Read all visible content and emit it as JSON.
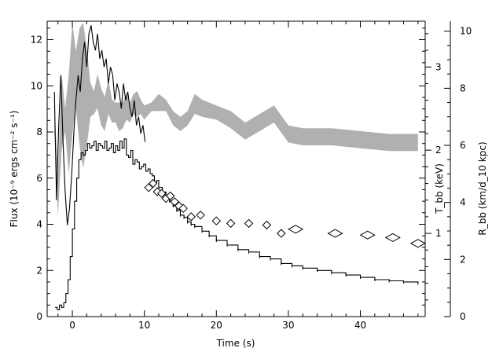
{
  "chart_data": {
    "type": "line",
    "title": "",
    "xlabel": "Time (s)",
    "xlim": [
      -3.5,
      49
    ],
    "x_ticks": [
      0,
      10,
      20,
      30,
      40
    ],
    "y_left": {
      "label": "Flux (10⁻⁹ ergs cm⁻² s⁻¹)",
      "lim": [
        0,
        12.8
      ],
      "ticks": [
        0,
        2,
        4,
        6,
        8,
        10,
        12
      ]
    },
    "y_right_T": {
      "label": "T_bb (keV)",
      "lim": [
        0,
        3.55
      ],
      "ticks": [
        1,
        2,
        3
      ],
      "minor_step": 0.2
    },
    "y_right_R": {
      "label": "R_bb (km/d_10 kpc)",
      "lim": [
        0,
        10.35
      ],
      "ticks": [
        0,
        2,
        4,
        6,
        8,
        10
      ],
      "minor_step": 0.5
    },
    "series": [
      {
        "role": "flux",
        "style": "step-line",
        "x": [
          -2.4,
          -2.1,
          -1.8,
          -1.5,
          -1.2,
          -0.9,
          -0.6,
          -0.3,
          0,
          0.3,
          0.6,
          0.9,
          1.2,
          1.5,
          1.8,
          2.1,
          2.4,
          2.7,
          3,
          3.3,
          3.6,
          3.9,
          4.2,
          4.5,
          4.8,
          5.1,
          5.4,
          5.7,
          6,
          6.3,
          6.6,
          6.9,
          7.2,
          7.5,
          7.8,
          8.1,
          8.4,
          8.7,
          9,
          9.3,
          9.6,
          9.9,
          10.2,
          10.5,
          10.8,
          11.1,
          11.4,
          11.7,
          12,
          12.5,
          13,
          13.5,
          14,
          14.5,
          15,
          15.5,
          16,
          16.5,
          17,
          18,
          19,
          20,
          21.5,
          23,
          24.5,
          26,
          27.5,
          29,
          30.5,
          32,
          34,
          36,
          38,
          40,
          42,
          44,
          46,
          48
        ],
        "values": [
          0.4,
          0.3,
          0.5,
          0.4,
          0.6,
          1.0,
          1.6,
          2.6,
          3.8,
          5.0,
          6.0,
          6.8,
          7.1,
          7.0,
          7.2,
          7.5,
          7.3,
          7.4,
          7.6,
          7.2,
          7.5,
          7.4,
          7.3,
          7.6,
          7.2,
          7.3,
          7.5,
          7.1,
          7.4,
          7.2,
          7.6,
          7.3,
          7.7,
          7.0,
          6.9,
          7.2,
          6.6,
          6.8,
          6.7,
          6.4,
          6.5,
          6.6,
          6.3,
          6.4,
          6.2,
          6.1,
          5.8,
          5.9,
          5.6,
          5.4,
          5.2,
          5.0,
          4.8,
          4.6,
          4.4,
          4.3,
          4.1,
          4.0,
          3.9,
          3.7,
          3.5,
          3.3,
          3.1,
          2.9,
          2.8,
          2.6,
          2.5,
          2.3,
          2.2,
          2.1,
          2.0,
          1.9,
          1.8,
          1.7,
          1.6,
          1.55,
          1.5,
          1.45
        ]
      },
      {
        "role": "temperature",
        "style": "line",
        "x": [
          -2.5,
          -2.2,
          -1.9,
          -1.6,
          -1.3,
          -1.0,
          -0.7,
          -0.4,
          -0.1,
          0.2,
          0.5,
          0.8,
          1.1,
          1.4,
          1.7,
          2.0,
          2.3,
          2.6,
          2.9,
          3.2,
          3.5,
          3.8,
          4.1,
          4.4,
          4.7,
          5.0,
          5.3,
          5.6,
          5.9,
          6.2,
          6.5,
          6.8,
          7.1,
          7.4,
          7.7,
          8.0,
          8.3,
          8.6,
          8.9,
          9.2,
          9.5,
          9.8,
          10.1
        ],
        "values": [
          2.7,
          1.4,
          2.3,
          2.9,
          2.1,
          1.5,
          1.1,
          1.3,
          1.7,
          2.2,
          2.6,
          2.9,
          2.7,
          3.1,
          3.3,
          3.0,
          3.4,
          3.5,
          3.3,
          3.2,
          3.4,
          3.1,
          3.2,
          3.0,
          3.1,
          2.8,
          3.0,
          2.9,
          2.6,
          2.8,
          2.7,
          2.5,
          2.8,
          2.6,
          2.7,
          2.5,
          2.4,
          2.6,
          2.3,
          2.4,
          2.2,
          2.3,
          2.1
        ]
      },
      {
        "role": "temperature",
        "style": "diamonds",
        "x": [
          10.6,
          11.2,
          11.8,
          12.4,
          13.0,
          13.6,
          14.2,
          14.8,
          15.4,
          16.5,
          17.8,
          20.0,
          22.0,
          24.5,
          27.0,
          29.0,
          31.0,
          36.5,
          41.0,
          44.5,
          48.0
        ],
        "values": [
          1.55,
          1.6,
          1.5,
          1.48,
          1.42,
          1.45,
          1.38,
          1.33,
          1.3,
          1.2,
          1.22,
          1.15,
          1.12,
          1.12,
          1.1,
          1.0,
          1.05,
          1.0,
          0.98,
          0.95,
          0.88
        ]
      },
      {
        "role": "radius",
        "style": "band",
        "x": [
          -2.5,
          -2.0,
          -1.5,
          -1.0,
          -0.5,
          0,
          0.5,
          1.0,
          1.5,
          2.0,
          2.5,
          3.0,
          3.5,
          4.0,
          4.5,
          5.0,
          5.5,
          6.0,
          6.5,
          7.0,
          7.5,
          8.0,
          8.5,
          9.0,
          9.5,
          10.0,
          11.0,
          12.0,
          13.0,
          14.0,
          15.0,
          16.0,
          17.0,
          18.0,
          20.0,
          22.0,
          24.0,
          26.0,
          28.0,
          30.0,
          32.0,
          36.0,
          40.0,
          44.0,
          48.0
        ],
        "low": [
          6.5,
          3.5,
          5.8,
          6.5,
          5.0,
          6.4,
          7.3,
          6.0,
          5.2,
          6.0,
          7.0,
          7.1,
          7.3,
          6.7,
          6.5,
          7.1,
          6.8,
          6.8,
          6.5,
          6.6,
          6.9,
          6.8,
          7.1,
          7.0,
          7.1,
          6.9,
          7.2,
          7.2,
          7.2,
          6.7,
          6.5,
          6.7,
          7.1,
          7.0,
          6.9,
          6.6,
          6.2,
          6.5,
          6.8,
          6.1,
          6.0,
          6.0,
          5.9,
          5.8,
          5.8
        ],
        "high": [
          7.4,
          5.0,
          8.5,
          7.3,
          8.5,
          10.3,
          9.3,
          10.1,
          10.3,
          9.4,
          8.2,
          7.9,
          8.5,
          8.0,
          7.7,
          8.3,
          7.6,
          7.5,
          7.5,
          7.5,
          7.8,
          7.5,
          7.8,
          7.9,
          7.6,
          7.4,
          7.5,
          7.8,
          7.6,
          7.2,
          7.0,
          7.2,
          7.8,
          7.6,
          7.4,
          7.2,
          6.8,
          7.1,
          7.4,
          6.7,
          6.6,
          6.6,
          6.5,
          6.4,
          6.4
        ]
      }
    ],
    "grid": false,
    "legend": "none"
  }
}
